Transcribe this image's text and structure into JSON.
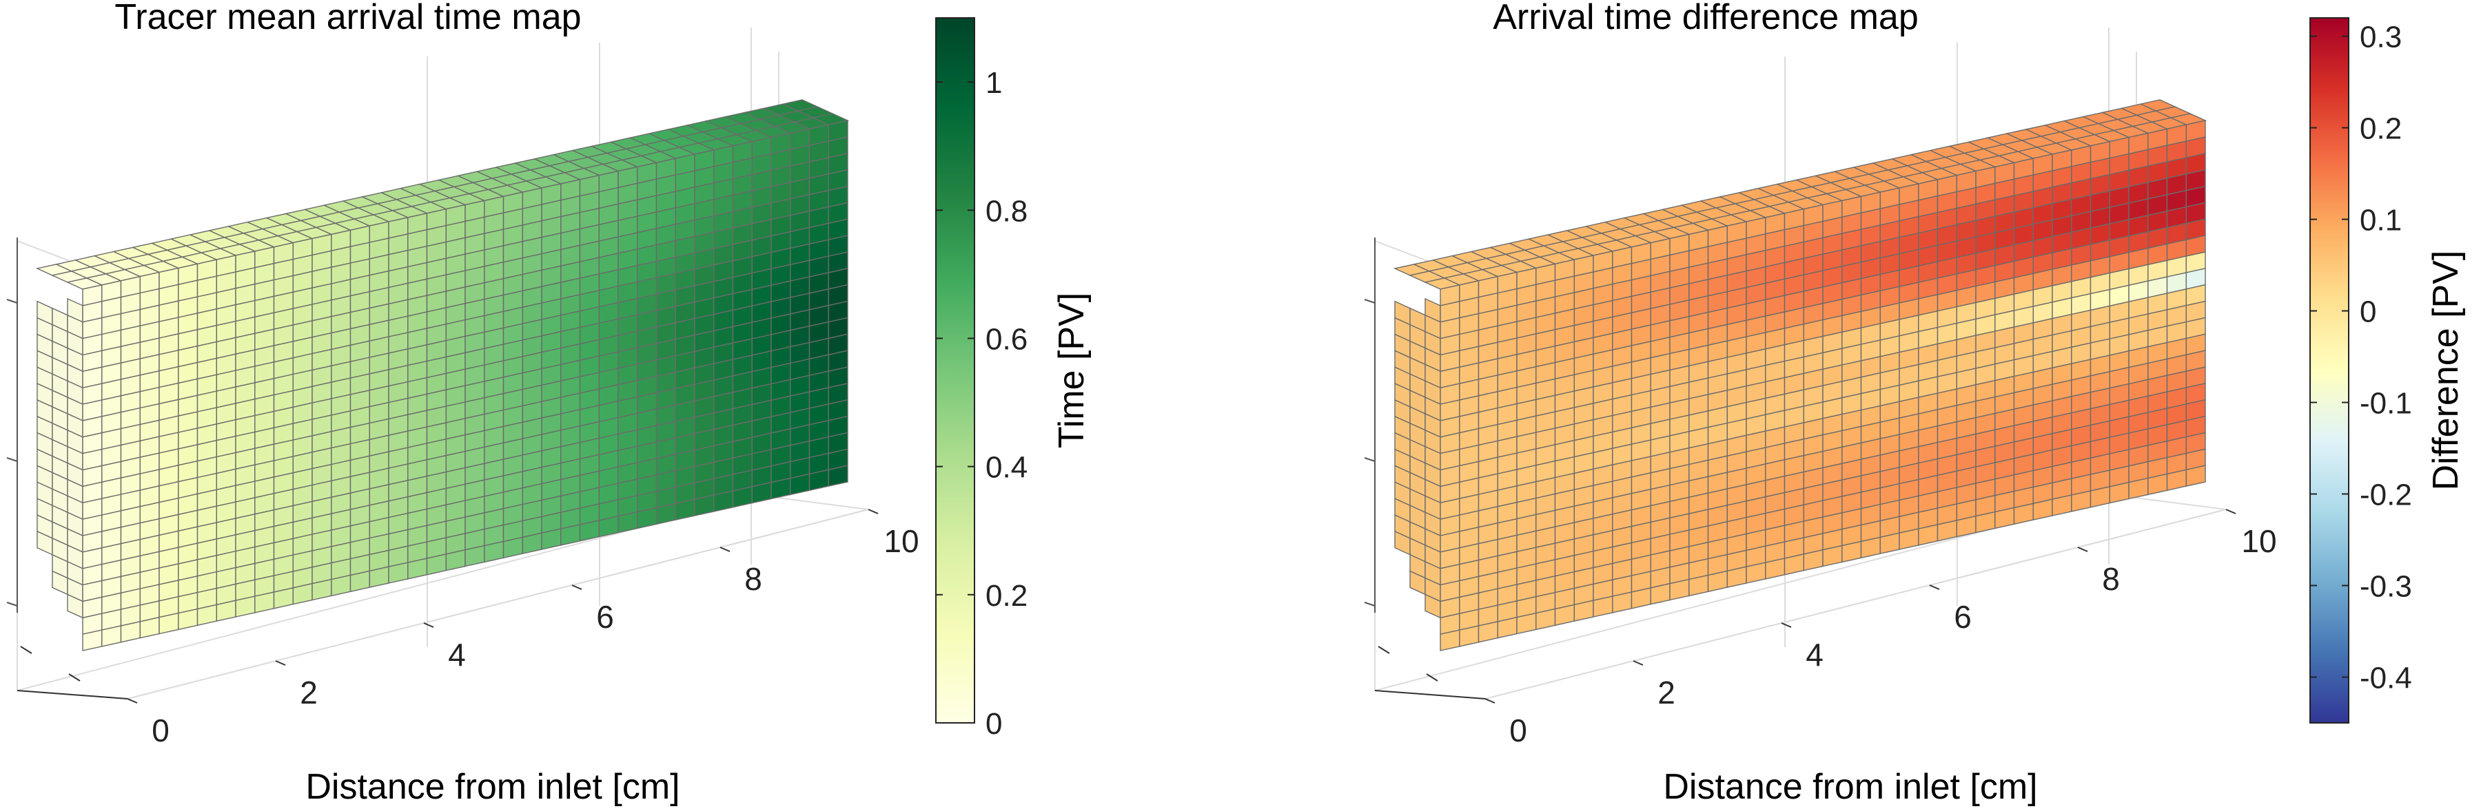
{
  "chart_data": [
    {
      "type": "heatmap",
      "subtype": "3d-voxel-block",
      "title": "Tracer mean arrival time map",
      "xlabel": "Distance from inlet [cm]",
      "x_ticks": [
        "0",
        "2",
        "4",
        "6",
        "8",
        "10"
      ],
      "xlim": [
        0,
        10
      ],
      "colorbar": {
        "label": "Time [PV]",
        "limits": [
          0,
          1.1
        ],
        "ticks": [
          "0",
          "0.2",
          "0.4",
          "0.6",
          "0.8",
          "1"
        ],
        "tick_values": [
          0,
          0.2,
          0.4,
          0.6,
          0.8,
          1.0
        ],
        "colormap": [
          "#ffffe5",
          "#f7fcb9",
          "#d9f0a3",
          "#addd8e",
          "#78c679",
          "#41ab5d",
          "#238443",
          "#006837",
          "#004529"
        ]
      },
      "field": {
        "description_values": {
          "inlet_value": 0.02,
          "outlet_top_value": 0.78,
          "outlet_band_peak_value": 1.05,
          "outlet_bottom_value": 0.95
        }
      }
    },
    {
      "type": "heatmap",
      "subtype": "3d-voxel-block",
      "title": "Arrival time difference map",
      "xlabel": "Distance from inlet [cm]",
      "x_ticks": [
        "0",
        "2",
        "4",
        "6",
        "8",
        "10"
      ],
      "xlim": [
        0,
        10
      ],
      "colorbar": {
        "label": "Difference [PV]",
        "limits": [
          -0.45,
          0.32
        ],
        "ticks": [
          "-0.4",
          "-0.3",
          "-0.2",
          "-0.1",
          "0",
          "0.1",
          "0.2",
          "0.3"
        ],
        "tick_values": [
          -0.4,
          -0.3,
          -0.2,
          -0.1,
          0,
          0.1,
          0.2,
          0.3
        ],
        "colormap": [
          "#313695",
          "#4575b4",
          "#74add1",
          "#abd9e9",
          "#e0f3f8",
          "#ffffbf",
          "#fee090",
          "#fdae61",
          "#f46d43",
          "#d73027",
          "#a50026"
        ]
      },
      "field": {
        "description_values": {
          "inlet_value": 0.05,
          "max_value": 0.3,
          "min_value": -0.15
        }
      }
    }
  ]
}
